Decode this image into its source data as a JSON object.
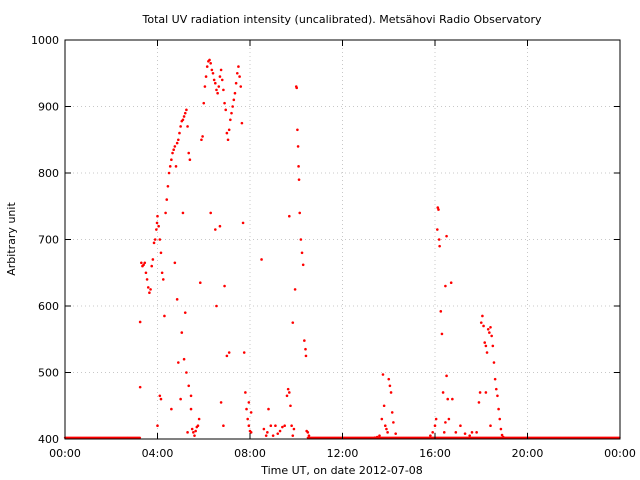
{
  "chart_data": {
    "type": "scatter",
    "title": "Total UV radiation intensity (uncalibrated). Metsähovi Radio Observatory",
    "xlabel": "Time UT, on date 2012-07-08",
    "ylabel": "Arbitrary unit",
    "xlim": [
      0,
      24
    ],
    "ylim": [
      400,
      1000
    ],
    "x_ticks": [
      {
        "value": 0,
        "label": "00:00"
      },
      {
        "value": 4,
        "label": "04:00"
      },
      {
        "value": 8,
        "label": "08:00"
      },
      {
        "value": 12,
        "label": "12:00"
      },
      {
        "value": 16,
        "label": "16:00"
      },
      {
        "value": 20,
        "label": "20:00"
      },
      {
        "value": 24,
        "label": "00:00"
      }
    ],
    "y_ticks": [
      {
        "value": 400,
        "label": "400"
      },
      {
        "value": 500,
        "label": "500"
      },
      {
        "value": 600,
        "label": "600"
      },
      {
        "value": 700,
        "label": "700"
      },
      {
        "value": 800,
        "label": "800"
      },
      {
        "value": 900,
        "label": "900"
      },
      {
        "value": 1000,
        "label": "1000"
      }
    ],
    "grid": true,
    "point_color": "#ff0000",
    "series": [
      {
        "points": [
          [
            3.25,
            576
          ],
          [
            3.25,
            478
          ],
          [
            3.3,
            665
          ],
          [
            3.35,
            660
          ],
          [
            3.4,
            662
          ],
          [
            3.45,
            665
          ],
          [
            3.5,
            650
          ],
          [
            3.55,
            640
          ],
          [
            3.6,
            628
          ],
          [
            3.65,
            620
          ],
          [
            3.7,
            625
          ],
          [
            3.75,
            660
          ],
          [
            3.8,
            670
          ],
          [
            3.85,
            695
          ],
          [
            3.9,
            700
          ],
          [
            3.95,
            715
          ],
          [
            3.98,
            725
          ],
          [
            4.0,
            735
          ],
          [
            4.05,
            720
          ],
          [
            4.1,
            700
          ],
          [
            4.15,
            680
          ],
          [
            4.2,
            650
          ],
          [
            4.25,
            640
          ],
          [
            4.3,
            585
          ],
          [
            4.35,
            740
          ],
          [
            4.4,
            760
          ],
          [
            4.45,
            780
          ],
          [
            4.5,
            800
          ],
          [
            4.55,
            810
          ],
          [
            4.6,
            820
          ],
          [
            4.65,
            830
          ],
          [
            4.7,
            835
          ],
          [
            4.75,
            840
          ],
          [
            4.8,
            810
          ],
          [
            4.85,
            845
          ],
          [
            4.9,
            850
          ],
          [
            4.95,
            860
          ],
          [
            5.0,
            870
          ],
          [
            5.05,
            878
          ],
          [
            5.1,
            880
          ],
          [
            5.15,
            885
          ],
          [
            5.2,
            890
          ],
          [
            5.25,
            895
          ],
          [
            5.3,
            870
          ],
          [
            5.35,
            830
          ],
          [
            5.4,
            820
          ],
          [
            5.05,
            560
          ],
          [
            5.15,
            520
          ],
          [
            5.25,
            500
          ],
          [
            5.35,
            480
          ],
          [
            5.45,
            465
          ],
          [
            5.5,
            415
          ],
          [
            5.55,
            410
          ],
          [
            5.6,
            405
          ],
          [
            5.65,
            412
          ],
          [
            5.7,
            418
          ],
          [
            5.75,
            420
          ],
          [
            5.8,
            430
          ],
          [
            5.85,
            635
          ],
          [
            5.9,
            850
          ],
          [
            5.95,
            855
          ],
          [
            6.0,
            905
          ],
          [
            6.05,
            930
          ],
          [
            6.1,
            945
          ],
          [
            6.15,
            960
          ],
          [
            6.2,
            968
          ],
          [
            6.25,
            970
          ],
          [
            6.3,
            965
          ],
          [
            6.35,
            955
          ],
          [
            6.4,
            950
          ],
          [
            6.45,
            940
          ],
          [
            6.5,
            935
          ],
          [
            6.55,
            925
          ],
          [
            6.6,
            920
          ],
          [
            6.65,
            930
          ],
          [
            6.7,
            945
          ],
          [
            6.75,
            955
          ],
          [
            6.8,
            940
          ],
          [
            6.85,
            925
          ],
          [
            6.9,
            905
          ],
          [
            6.95,
            895
          ],
          [
            7.0,
            860
          ],
          [
            7.05,
            850
          ],
          [
            7.1,
            865
          ],
          [
            7.15,
            880
          ],
          [
            7.2,
            890
          ],
          [
            7.25,
            900
          ],
          [
            7.3,
            910
          ],
          [
            7.35,
            920
          ],
          [
            7.4,
            935
          ],
          [
            7.45,
            950
          ],
          [
            7.5,
            960
          ],
          [
            7.55,
            945
          ],
          [
            7.6,
            930
          ],
          [
            7.65,
            875
          ],
          [
            7.7,
            725
          ],
          [
            7.75,
            530
          ],
          [
            7.8,
            470
          ],
          [
            7.85,
            445
          ],
          [
            7.9,
            430
          ],
          [
            7.95,
            420
          ],
          [
            8.0,
            412
          ],
          [
            8.05,
            410
          ],
          [
            6.3,
            740
          ],
          [
            6.5,
            715
          ],
          [
            6.7,
            720
          ],
          [
            6.9,
            630
          ],
          [
            7.0,
            525
          ],
          [
            7.1,
            530
          ],
          [
            6.55,
            600
          ],
          [
            6.75,
            455
          ],
          [
            6.85,
            420
          ],
          [
            7.95,
            455
          ],
          [
            8.05,
            440
          ],
          [
            4.0,
            420
          ],
          [
            4.1,
            465
          ],
          [
            4.15,
            460
          ],
          [
            4.6,
            445
          ],
          [
            4.75,
            665
          ],
          [
            4.85,
            610
          ],
          [
            4.9,
            515
          ],
          [
            5.0,
            460
          ],
          [
            5.1,
            740
          ],
          [
            5.2,
            590
          ],
          [
            5.3,
            410
          ],
          [
            5.45,
            445
          ],
          [
            8.5,
            670
          ],
          [
            8.6,
            415
          ],
          [
            8.7,
            405
          ],
          [
            8.75,
            410
          ],
          [
            8.8,
            445
          ],
          [
            8.9,
            420
          ],
          [
            9.0,
            405
          ],
          [
            9.1,
            420
          ],
          [
            9.2,
            408
          ],
          [
            9.3,
            412
          ],
          [
            9.4,
            418
          ],
          [
            9.5,
            420
          ],
          [
            9.6,
            465
          ],
          [
            9.65,
            475
          ],
          [
            9.7,
            470
          ],
          [
            9.75,
            450
          ],
          [
            9.8,
            420
          ],
          [
            9.85,
            405
          ],
          [
            9.9,
            415
          ],
          [
            9.95,
            625
          ],
          [
            10.0,
            930
          ],
          [
            10.02,
            928
          ],
          [
            10.05,
            865
          ],
          [
            10.08,
            840
          ],
          [
            10.1,
            810
          ],
          [
            10.12,
            790
          ],
          [
            10.15,
            740
          ],
          [
            10.2,
            700
          ],
          [
            10.25,
            680
          ],
          [
            10.3,
            662
          ],
          [
            10.35,
            548
          ],
          [
            10.4,
            535
          ],
          [
            10.42,
            525
          ],
          [
            10.45,
            412
          ],
          [
            10.5,
            410
          ],
          [
            10.55,
            405
          ],
          [
            9.7,
            735
          ],
          [
            9.85,
            575
          ],
          [
            13.4,
            402
          ],
          [
            13.5,
            403
          ],
          [
            13.6,
            405
          ],
          [
            13.7,
            430
          ],
          [
            13.75,
            497
          ],
          [
            13.8,
            450
          ],
          [
            13.85,
            420
          ],
          [
            13.9,
            415
          ],
          [
            13.95,
            410
          ],
          [
            14.0,
            490
          ],
          [
            14.05,
            480
          ],
          [
            14.1,
            470
          ],
          [
            14.15,
            440
          ],
          [
            14.2,
            425
          ],
          [
            14.3,
            408
          ],
          [
            15.8,
            405
          ],
          [
            15.9,
            410
          ],
          [
            16.0,
            420
          ],
          [
            16.05,
            430
          ],
          [
            16.1,
            715
          ],
          [
            16.12,
            748
          ],
          [
            16.15,
            745
          ],
          [
            16.18,
            700
          ],
          [
            16.2,
            690
          ],
          [
            16.25,
            592
          ],
          [
            16.3,
            558
          ],
          [
            16.35,
            470
          ],
          [
            16.4,
            410
          ],
          [
            16.45,
            425
          ],
          [
            16.5,
            495
          ],
          [
            16.55,
            460
          ],
          [
            16.6,
            430
          ],
          [
            16.7,
            635
          ],
          [
            16.75,
            460
          ],
          [
            16.45,
            630
          ],
          [
            16.5,
            705
          ],
          [
            16.9,
            410
          ],
          [
            17.1,
            420
          ],
          [
            17.3,
            408
          ],
          [
            17.5,
            405
          ],
          [
            17.6,
            410
          ],
          [
            17.8,
            410
          ],
          [
            17.9,
            455
          ],
          [
            17.95,
            470
          ],
          [
            18.0,
            575
          ],
          [
            18.05,
            585
          ],
          [
            18.1,
            570
          ],
          [
            18.15,
            545
          ],
          [
            18.2,
            540
          ],
          [
            18.25,
            530
          ],
          [
            18.3,
            565
          ],
          [
            18.35,
            560
          ],
          [
            18.4,
            568
          ],
          [
            18.45,
            555
          ],
          [
            18.5,
            540
          ],
          [
            18.55,
            515
          ],
          [
            18.6,
            490
          ],
          [
            18.65,
            475
          ],
          [
            18.7,
            465
          ],
          [
            18.75,
            445
          ],
          [
            18.8,
            430
          ],
          [
            18.85,
            415
          ],
          [
            18.9,
            406
          ],
          [
            18.95,
            403
          ],
          [
            18.2,
            470
          ],
          [
            18.4,
            420
          ]
        ]
      }
    ],
    "baseline": {
      "value": 402,
      "ranges": [
        [
          0,
          3.25
        ],
        [
          10.5,
          24
        ]
      ]
    }
  }
}
